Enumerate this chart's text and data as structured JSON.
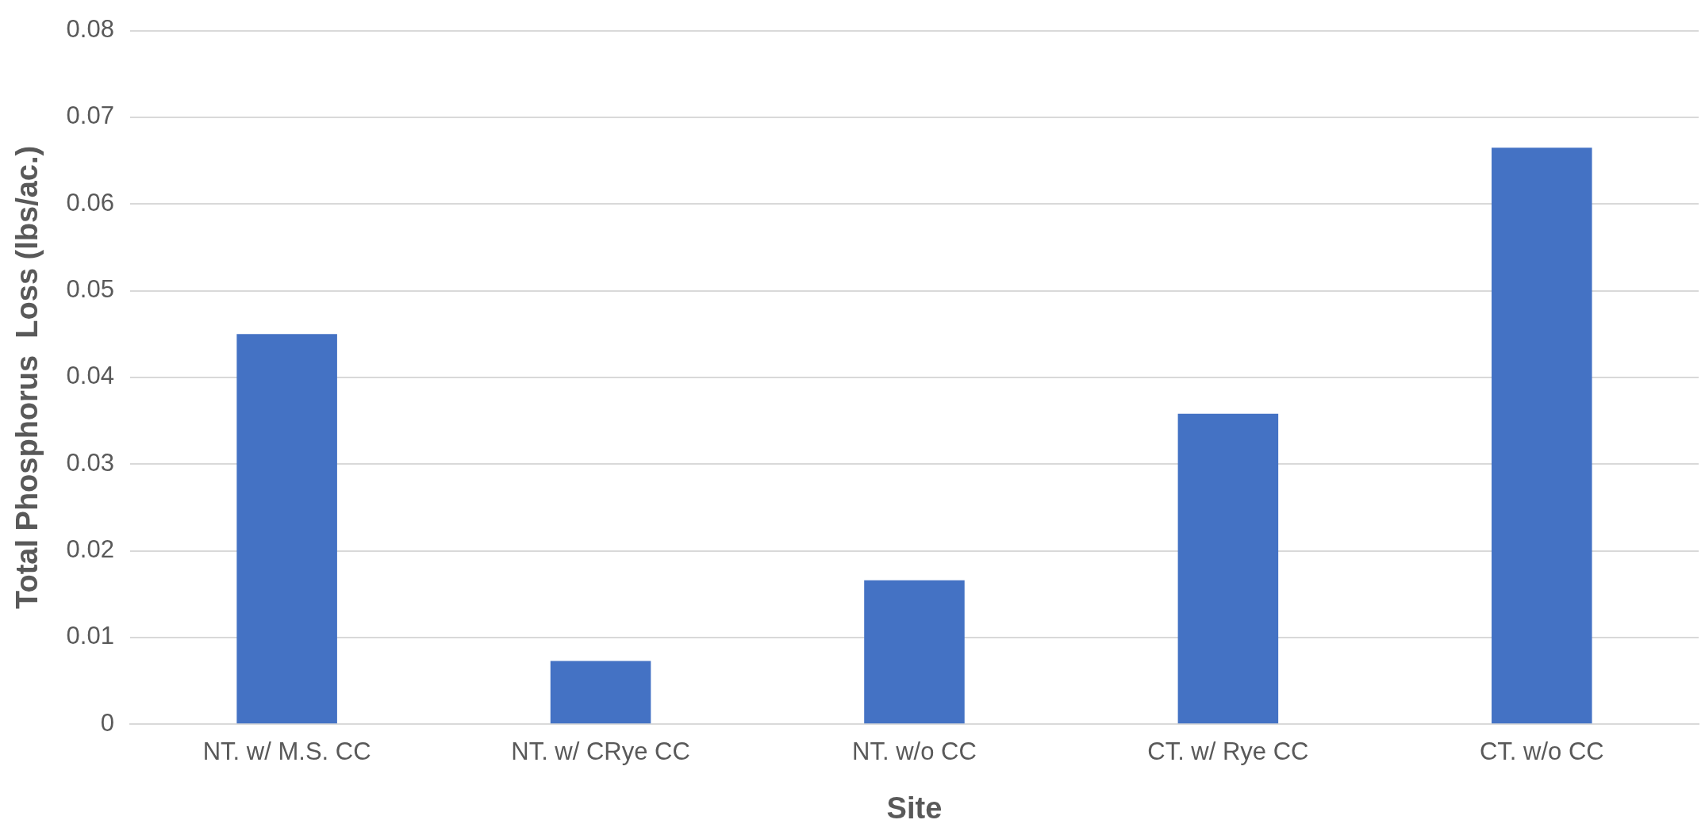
{
  "chart_data": {
    "type": "bar",
    "xlabel": "Site",
    "ylabel": "Total Phosphorus  Loss (lbs/ac.)",
    "categories": [
      "NT. w/ M.S. CC",
      "NT. w/ CRye CC",
      "NT. w/o CC",
      "CT. w/ Rye CC",
      "CT. w/o CC"
    ],
    "values": [
      0.045,
      0.0073,
      0.0166,
      0.0358,
      0.0665
    ],
    "color": "#4472c4",
    "ylim": [
      0,
      0.08
    ],
    "yticks": [
      0,
      0.01,
      0.02,
      0.03,
      0.04,
      0.05,
      0.06,
      0.07,
      0.08
    ],
    "grid": "y",
    "legend": false
  }
}
